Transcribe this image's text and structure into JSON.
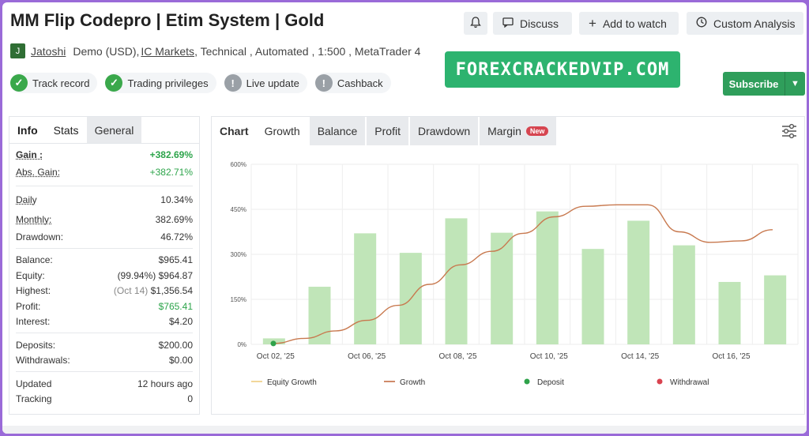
{
  "header": {
    "title": "MM Flip Codepro | Etim System | Gold",
    "bell_icon": "bell-icon",
    "discuss_label": "Discuss",
    "add_watch_label": "Add to watch",
    "custom_analysis_label": "Custom Analysis"
  },
  "meta": {
    "avatar_letter": "J",
    "author": "Jatoshi",
    "account": "Demo (USD),",
    "broker": "IC Markets",
    "rest": ", Technical , Automated , 1:500 , MetaTrader 4"
  },
  "badges": [
    {
      "label": "Track record",
      "verified": true
    },
    {
      "label": "Trading privileges",
      "verified": true
    },
    {
      "label": "Live update",
      "verified": false
    },
    {
      "label": "Cashback",
      "verified": false
    }
  ],
  "promo": "FOREXCRACKEDVIP.COM",
  "subscribe_label": "Subscribe",
  "left_tabs": [
    "Info",
    "Stats",
    "General"
  ],
  "stats": {
    "gain_label": "Gain :",
    "gain": "+382.69%",
    "abs_gain_label": "Abs. Gain:",
    "abs_gain": "+382.71%",
    "daily_label": "Daily",
    "daily": "10.34%",
    "monthly_label": "Monthly:",
    "monthly": "382.69%",
    "drawdown_label": "Drawdown:",
    "drawdown": "46.72%",
    "balance_label": "Balance:",
    "balance": "$965.41",
    "equity_label": "Equity:",
    "equity_pct": "(99.94%)",
    "equity": "$964.87",
    "highest_label": "Highest:",
    "highest_date": "(Oct 14)",
    "highest": "$1,356.54",
    "profit_label": "Profit:",
    "profit": "$765.41",
    "interest_label": "Interest:",
    "interest": "$4.20",
    "deposits_label": "Deposits:",
    "deposits": "$200.00",
    "withdrawals_label": "Withdrawals:",
    "withdrawals": "$0.00",
    "updated_label": "Updated",
    "updated": "12 hours ago",
    "tracking_label": "Tracking",
    "tracking": "0"
  },
  "chart_tabs": {
    "chart": "Chart",
    "growth": "Growth",
    "balance": "Balance",
    "profit": "Profit",
    "drawdown": "Drawdown",
    "margin": "Margin",
    "new_badge": "New"
  },
  "chart_data": {
    "type": "bar",
    "ylim": [
      0,
      600
    ],
    "y_ticks": [
      "0%",
      "150%",
      "300%",
      "450%",
      "600%"
    ],
    "x_ticks": [
      "Oct 02, '25",
      "Oct 06, '25",
      "Oct 08, '25",
      "Oct 10, '25",
      "Oct 14, '25",
      "Oct 16, '25"
    ],
    "bars": [
      20,
      192,
      370,
      305,
      420,
      372,
      443,
      318,
      412,
      330,
      208,
      230
    ],
    "growth_line": [
      3,
      20,
      45,
      80,
      130,
      200,
      265,
      310,
      370,
      425,
      460,
      465,
      465,
      375,
      340,
      345,
      382
    ],
    "deposit_point": 0,
    "legend": [
      {
        "label": "Equity Growth",
        "color": "#f2d79a",
        "kind": "line"
      },
      {
        "label": "Growth",
        "color": "#d08a6a",
        "kind": "line"
      },
      {
        "label": "Deposit",
        "color": "#2ea24a",
        "kind": "dot"
      },
      {
        "label": "Withdrawal",
        "color": "#d9434f",
        "kind": "dot"
      }
    ]
  }
}
